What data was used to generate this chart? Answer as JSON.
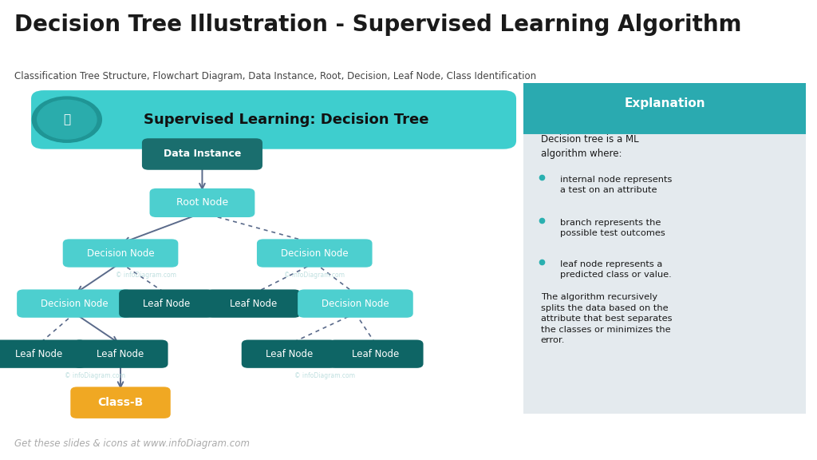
{
  "title": "Decision Tree Illustration - Supervised Learning Algorithm",
  "subtitle": "Classification Tree Structure, Flowchart Diagram, Data Instance, Root, Decision, Leaf Node, Class Identification",
  "header_text": "Supervised Learning: Decision Tree",
  "teal_dark": "#1a8585",
  "teal_mid": "#2ab0b0",
  "teal_light": "#4dcfcf",
  "teal_bright": "#50d0d0",
  "teal_header": "#3ecece",
  "dark_teal": "#1a6e6e",
  "darker_teal": "#0e6565",
  "orange": "#f0a823",
  "bg_color": "#ffffff",
  "explanation_bg": "#e4eaee",
  "explanation_header": "#2aaab0",
  "footer": "Get these slides & icons at www.infoDiagram.com",
  "explanation_title": "Explanation",
  "explanation_body": "Decision tree is a ML\nalgorithm where:",
  "bullet1": "internal node represents\na test on an attribute",
  "bullet2": "branch represents the\npossible test outcomes",
  "bullet3": "leaf node represents a\npredicted class or value.",
  "algo_text": "The algorithm recursively\nsplits the data based on the\nattribute that best separates\nthe classes or minimizes the\nerror.",
  "left_bar_color": "#2ab5b5",
  "arrow_color": "#5a6a8a",
  "watermark": "© infoDiagram.com"
}
